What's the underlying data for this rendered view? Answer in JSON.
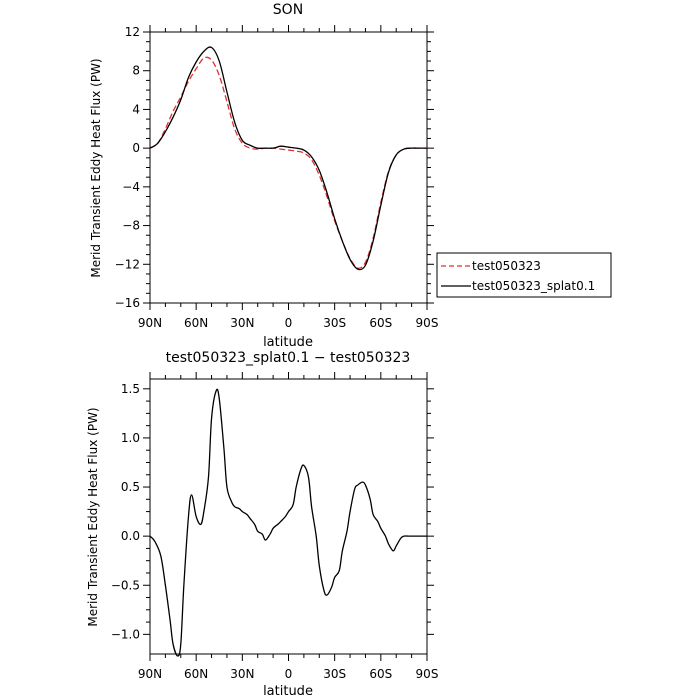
{
  "chart_data": [
    {
      "type": "line",
      "title": "SON",
      "xlabel": "latitude",
      "ylabel": "Merid Transient Eddy Heat Flux (PW)",
      "xticks": [
        "90N",
        "60N",
        "30N",
        "0",
        "30S",
        "60S",
        "90S"
      ],
      "xlim": [
        90,
        -90
      ],
      "ylim": [
        -16,
        12
      ],
      "yticks": [
        "12",
        "8",
        "4",
        "0",
        "−4",
        "−8",
        "−12",
        "−16"
      ],
      "legend": {
        "placement": "right",
        "entries": [
          "test050323",
          "test050323_splat0.1"
        ]
      },
      "series": [
        {
          "name": "test050323",
          "color": "#e03030",
          "dash": "dashed",
          "x": [
            90,
            85,
            80,
            75,
            70,
            65,
            60,
            55,
            50,
            45,
            40,
            35,
            30,
            25,
            20,
            15,
            10,
            5,
            0,
            -5,
            -10,
            -15,
            -20,
            -25,
            -30,
            -35,
            -40,
            -45,
            -50,
            -55,
            -60,
            -65,
            -70,
            -75,
            -80,
            -85,
            -90
          ],
          "values": [
            0,
            0.5,
            2.0,
            3.8,
            5.3,
            6.9,
            8.2,
            9.3,
            9.1,
            7.5,
            4.8,
            2.0,
            0.5,
            0.0,
            -0.1,
            0.0,
            0.0,
            -0.1,
            -0.2,
            -0.3,
            -0.5,
            -1.2,
            -2.8,
            -5.0,
            -7.5,
            -9.6,
            -11.4,
            -12.4,
            -11.8,
            -9.3,
            -5.6,
            -2.4,
            -0.7,
            -0.1,
            0,
            0,
            0
          ]
        },
        {
          "name": "test050323_splat0.1",
          "color": "#000000",
          "dash": "solid",
          "x": [
            90,
            85,
            80,
            75,
            70,
            65,
            60,
            55,
            50,
            45,
            40,
            35,
            30,
            25,
            20,
            15,
            10,
            5,
            0,
            -5,
            -10,
            -15,
            -20,
            -25,
            -30,
            -35,
            -40,
            -45,
            -50,
            -55,
            -60,
            -65,
            -70,
            -75,
            -80,
            -85,
            -90
          ],
          "values": [
            0,
            0.5,
            1.7,
            3.2,
            5.0,
            7.3,
            8.9,
            10.0,
            10.4,
            9.0,
            5.8,
            2.7,
            0.8,
            0.3,
            0.0,
            0.0,
            0.0,
            0.2,
            0.1,
            0.0,
            -0.2,
            -0.9,
            -2.3,
            -4.6,
            -7.3,
            -9.6,
            -11.5,
            -12.5,
            -12.1,
            -9.6,
            -5.9,
            -2.5,
            -0.7,
            -0.1,
            0,
            0,
            0
          ]
        }
      ]
    },
    {
      "type": "line",
      "title": "test050323_splat0.1 − test050323",
      "xlabel": "latitude",
      "ylabel": "Merid Transient Eddy Heat Flux (PW)",
      "xticks": [
        "90N",
        "60N",
        "30N",
        "0",
        "30S",
        "60S",
        "90S"
      ],
      "xlim": [
        90,
        -90
      ],
      "ylim": [
        -1.2,
        1.6
      ],
      "yticks": [
        "1.5",
        "1.0",
        "0.5",
        "0.0",
        "−0.5",
        "−1.0"
      ],
      "series": [
        {
          "color": "#000000",
          "dash": "solid",
          "x": [
            90,
            87,
            83,
            80,
            77,
            75,
            72,
            70,
            68,
            65,
            63,
            60,
            57,
            55,
            52,
            50,
            47,
            45,
            42,
            40,
            37,
            35,
            32,
            30,
            27,
            25,
            22,
            20,
            17,
            15,
            12,
            10,
            7,
            5,
            2,
            0,
            -3,
            -5,
            -8,
            -10,
            -13,
            -15,
            -18,
            -20,
            -23,
            -25,
            -28,
            -30,
            -33,
            -35,
            -38,
            -40,
            -43,
            -45,
            -48,
            -50,
            -53,
            -55,
            -58,
            -60,
            -63,
            -65,
            -68,
            -70,
            -73,
            -75,
            -78,
            -80,
            -83,
            -85,
            -88,
            -90
          ],
          "values": [
            0.0,
            -0.05,
            -0.2,
            -0.5,
            -0.85,
            -1.1,
            -1.22,
            -1.1,
            -0.5,
            0.2,
            0.42,
            0.2,
            0.12,
            0.25,
            0.6,
            1.2,
            1.48,
            1.4,
            0.9,
            0.5,
            0.35,
            0.3,
            0.28,
            0.25,
            0.22,
            0.18,
            0.12,
            0.05,
            0.02,
            -0.04,
            0.02,
            0.08,
            0.12,
            0.15,
            0.2,
            0.25,
            0.32,
            0.5,
            0.68,
            0.72,
            0.6,
            0.3,
            0.0,
            -0.3,
            -0.55,
            -0.6,
            -0.52,
            -0.42,
            -0.35,
            -0.15,
            0.05,
            0.25,
            0.48,
            0.52,
            0.55,
            0.52,
            0.38,
            0.22,
            0.15,
            0.08,
            0.0,
            -0.08,
            -0.15,
            -0.1,
            -0.02,
            0.0,
            0.0,
            0.0,
            0.0,
            0.0,
            0.0,
            0.0
          ]
        }
      ]
    }
  ]
}
